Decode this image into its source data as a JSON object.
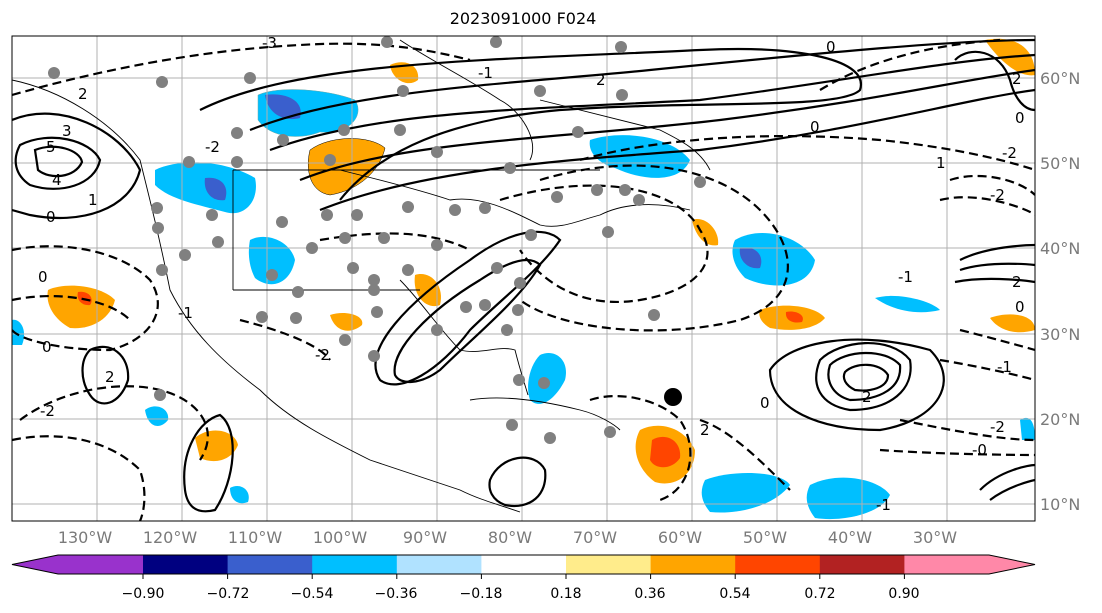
{
  "title": "2023091000 F024",
  "map": {
    "longitude_labels": [
      "130°W",
      "120°W",
      "110°W",
      "100°W",
      "90°W",
      "80°W",
      "70°W",
      "60°W",
      "50°W",
      "40°W",
      "30°W"
    ],
    "latitude_labels": [
      "60°N",
      "50°N",
      "40°N",
      "30°N",
      "20°N",
      "10°N"
    ],
    "contour_labels": [
      "-3",
      "2",
      "3",
      "5",
      "4",
      "0",
      "1",
      "-2",
      "0",
      "-1",
      "2",
      "0",
      "-2",
      "-1",
      "2",
      "0",
      "0",
      "-2",
      "2",
      "-1",
      "2",
      "0",
      "-2",
      "2",
      "-1",
      "-2",
      "-0",
      "1",
      "-2",
      "-1",
      "0",
      "2",
      "0"
    ]
  },
  "colorbar": {
    "colors": [
      "#9932CC",
      "#000080",
      "#3A5FCD",
      "#00BFFF",
      "#B0E2FF",
      "#FFFFFF",
      "#FFEC8B",
      "#FFA500",
      "#FF4500",
      "#B22222",
      "#FF88A8"
    ],
    "tick_labels": [
      "−0.90",
      "−0.72",
      "−0.54",
      "−0.36",
      "−0.18",
      "0.18",
      "0.36",
      "0.54",
      "0.72",
      "0.90"
    ]
  }
}
